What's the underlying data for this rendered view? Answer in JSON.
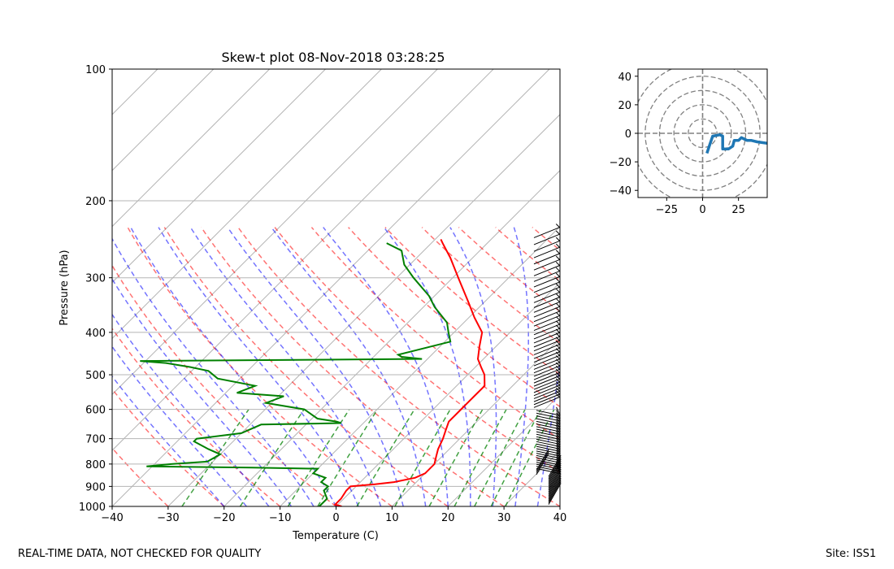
{
  "chart_data": [
    {
      "type": "skew-t",
      "title": "Skew-t plot 08-Nov-2018 03:28:25",
      "xlabel": "Temperature (C)",
      "ylabel": "Pressure (hPa)",
      "xlim": [
        -40,
        40
      ],
      "ylim": [
        1000,
        100
      ],
      "x_ticks": [
        "−40",
        "−30",
        "−20",
        "−10",
        "0",
        "10",
        "20",
        "30",
        "40"
      ],
      "y_ticks": [
        "100",
        "200",
        "300",
        "400",
        "500",
        "600",
        "700",
        "800",
        "900",
        "1000"
      ],
      "temperature_profile": {
        "name": "Temperature",
        "color": "#ff0000",
        "points": [
          [
            1000,
            1
          ],
          [
            990,
            -0.5
          ],
          [
            960,
            -0.5
          ],
          [
            920,
            -1
          ],
          [
            900,
            -1
          ],
          [
            890,
            3
          ],
          [
            880,
            6
          ],
          [
            860,
            9
          ],
          [
            840,
            10
          ],
          [
            800,
            10
          ],
          [
            770,
            9
          ],
          [
            740,
            8
          ],
          [
            700,
            7
          ],
          [
            670,
            6
          ],
          [
            640,
            5
          ],
          [
            610,
            5
          ],
          [
            580,
            5
          ],
          [
            560,
            5
          ],
          [
            530,
            5
          ],
          [
            500,
            3
          ],
          [
            480,
            1
          ],
          [
            460,
            -1
          ],
          [
            430,
            -3
          ],
          [
            400,
            -5
          ],
          [
            370,
            -9
          ],
          [
            340,
            -13
          ],
          [
            300,
            -19
          ],
          [
            270,
            -24
          ],
          [
            250,
            -28
          ],
          [
            245,
            -29
          ]
        ]
      },
      "dewpoint_profile": {
        "name": "Dewpoint",
        "color": "#008000",
        "points": [
          [
            1000,
            -3
          ],
          [
            960,
            -3
          ],
          [
            920,
            -5
          ],
          [
            900,
            -5
          ],
          [
            880,
            -7
          ],
          [
            860,
            -7
          ],
          [
            840,
            -10
          ],
          [
            820,
            -10
          ],
          [
            815,
            -22
          ],
          [
            810,
            -41
          ],
          [
            800,
            -37
          ],
          [
            790,
            -31
          ],
          [
            760,
            -30
          ],
          [
            740,
            -33
          ],
          [
            710,
            -37
          ],
          [
            700,
            -37
          ],
          [
            680,
            -30
          ],
          [
            650,
            -28
          ],
          [
            645,
            -14
          ],
          [
            640,
            -15
          ],
          [
            630,
            -19
          ],
          [
            600,
            -23
          ],
          [
            580,
            -31
          ],
          [
            560,
            -29
          ],
          [
            550,
            -38
          ],
          [
            530,
            -36
          ],
          [
            510,
            -44
          ],
          [
            490,
            -47
          ],
          [
            480,
            -51
          ],
          [
            470,
            -56
          ],
          [
            465,
            -61
          ],
          [
            460,
            -11
          ],
          [
            455,
            -15
          ],
          [
            450,
            -16
          ],
          [
            420,
            -9
          ],
          [
            400,
            -11
          ],
          [
            380,
            -13
          ],
          [
            350,
            -18
          ],
          [
            330,
            -21
          ],
          [
            300,
            -27
          ],
          [
            280,
            -31
          ],
          [
            260,
            -34
          ],
          [
            250,
            -38
          ]
        ]
      },
      "hodograph": {
        "xlim": [
          -45,
          45
        ],
        "ylim": [
          -45,
          45
        ],
        "x_ticks": [
          "−25",
          "0",
          "25"
        ],
        "y_ticks": [
          "40",
          "20",
          "0",
          "−20",
          "−40"
        ],
        "ring_speeds": [
          10,
          20,
          30,
          40,
          50
        ],
        "color": "#1f77b4",
        "uv": [
          [
            3,
            -14
          ],
          [
            5,
            -8
          ],
          [
            7,
            -2
          ],
          [
            12,
            -1
          ],
          [
            14,
            -2
          ],
          [
            14,
            -11
          ],
          [
            18,
            -11
          ],
          [
            21,
            -9
          ],
          [
            22,
            -5
          ],
          [
            25,
            -5
          ],
          [
            27,
            -3
          ],
          [
            29,
            -4
          ],
          [
            31,
            -5
          ],
          [
            34,
            -5
          ],
          [
            38,
            -6
          ],
          [
            45,
            -7
          ]
        ]
      },
      "wind_barbs_label": "wind barbs"
    }
  ],
  "footer": {
    "left": "REAL-TIME DATA, NOT CHECKED FOR QUALITY",
    "right": "Site: ISS1"
  }
}
